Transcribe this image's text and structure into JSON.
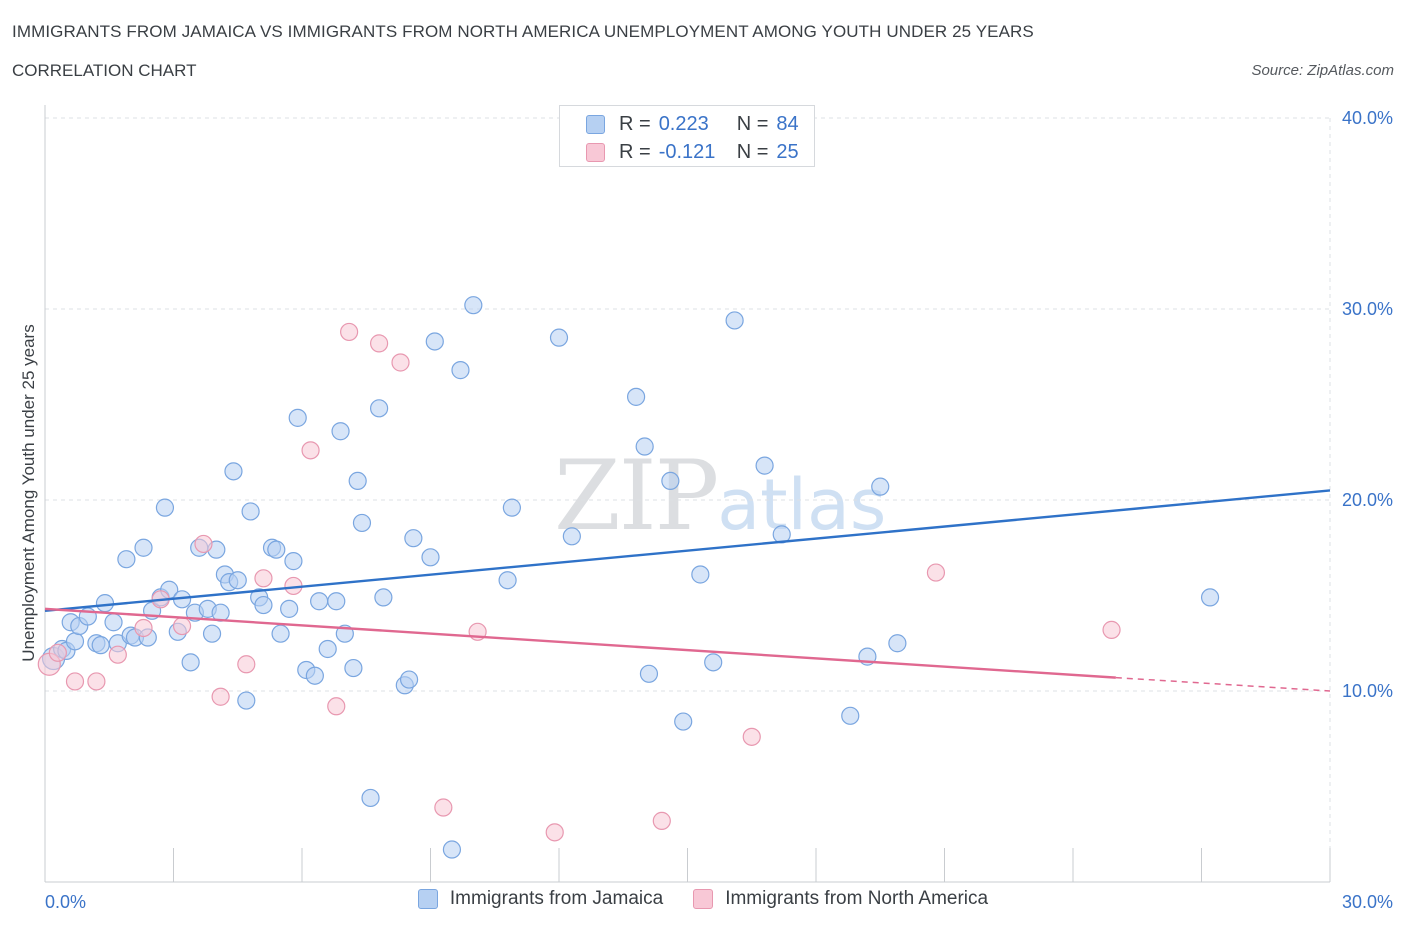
{
  "header": {
    "title": "IMMIGRANTS FROM JAMAICA VS IMMIGRANTS FROM NORTH AMERICA UNEMPLOYMENT AMONG YOUTH UNDER 25 YEARS",
    "subtitle": "CORRELATION CHART",
    "source": "Source: ZipAtlas.com"
  },
  "watermark": {
    "zip": "ZIP",
    "atlas": "atlas"
  },
  "legend": {
    "rows": [
      {
        "r_label": "R =",
        "r_value": "0.223",
        "n_label": "N =",
        "n_value": "84",
        "color": "#b6d0f2",
        "border": "#7aa6e0"
      },
      {
        "r_label": "R =",
        "r_value": "-0.121",
        "n_label": "N =",
        "n_value": "25",
        "color": "#f8c8d6",
        "border": "#e898b0"
      }
    ]
  },
  "bottom_legend": {
    "items": [
      {
        "label": "Immigrants from Jamaica",
        "color": "#b6d0f2",
        "border": "#7aa6e0"
      },
      {
        "label": "Immigrants from North America",
        "color": "#f8c8d6",
        "border": "#e898b0"
      }
    ]
  },
  "chart_data": {
    "type": "scatter",
    "title": "IMMIGRANTS FROM JAMAICA VS IMMIGRANTS FROM NORTH AMERICA UNEMPLOYMENT AMONG YOUTH UNDER 25 YEARS",
    "xlabel": "",
    "ylabel": "Unemployment Among Youth under 25 years",
    "xlim": [
      0,
      30
    ],
    "ylim": [
      0,
      40
    ],
    "x_ticks": [
      {
        "value": 0,
        "label": "0.0%"
      },
      {
        "value": 30,
        "label": "30.0%"
      }
    ],
    "y_ticks": [
      {
        "value": 10,
        "label": "10.0%"
      },
      {
        "value": 20,
        "label": "20.0%"
      },
      {
        "value": 30,
        "label": "30.0%"
      },
      {
        "value": 40,
        "label": "40.0%"
      }
    ],
    "grid": true,
    "legend_position": "top-center",
    "series": [
      {
        "name": "Immigrants from Jamaica",
        "color": "#7aa6e0",
        "fill": "#b6d0f2",
        "trend_color": "#2f72c8",
        "trend": {
          "x": [
            0,
            30
          ],
          "y": [
            14.2,
            20.5
          ]
        },
        "points": [
          [
            0.2,
            11.7
          ],
          [
            0.4,
            12.2
          ],
          [
            0.5,
            12.1
          ],
          [
            0.6,
            13.6
          ],
          [
            0.7,
            12.6
          ],
          [
            0.8,
            13.4
          ],
          [
            1.0,
            13.9
          ],
          [
            1.2,
            12.5
          ],
          [
            1.3,
            12.4
          ],
          [
            1.4,
            14.6
          ],
          [
            1.6,
            13.6
          ],
          [
            1.7,
            12.5
          ],
          [
            1.9,
            16.9
          ],
          [
            2.0,
            12.9
          ],
          [
            2.1,
            12.8
          ],
          [
            2.3,
            17.5
          ],
          [
            2.4,
            12.8
          ],
          [
            2.5,
            14.2
          ],
          [
            2.7,
            14.9
          ],
          [
            2.8,
            19.6
          ],
          [
            2.9,
            15.3
          ],
          [
            3.1,
            13.1
          ],
          [
            3.2,
            14.8
          ],
          [
            3.4,
            11.5
          ],
          [
            3.5,
            14.1
          ],
          [
            3.6,
            17.5
          ],
          [
            3.8,
            14.3
          ],
          [
            3.9,
            13.0
          ],
          [
            4.0,
            17.4
          ],
          [
            4.1,
            14.1
          ],
          [
            4.2,
            16.1
          ],
          [
            4.3,
            15.7
          ],
          [
            4.4,
            21.5
          ],
          [
            4.5,
            15.8
          ],
          [
            4.7,
            9.5
          ],
          [
            4.8,
            19.4
          ],
          [
            5.0,
            14.9
          ],
          [
            5.1,
            14.5
          ],
          [
            5.3,
            17.5
          ],
          [
            5.4,
            17.4
          ],
          [
            5.5,
            13.0
          ],
          [
            5.7,
            14.3
          ],
          [
            5.8,
            16.8
          ],
          [
            5.9,
            24.3
          ],
          [
            6.1,
            11.1
          ],
          [
            6.3,
            10.8
          ],
          [
            6.4,
            14.7
          ],
          [
            6.6,
            12.2
          ],
          [
            6.8,
            14.7
          ],
          [
            6.9,
            23.6
          ],
          [
            7.0,
            13.0
          ],
          [
            7.2,
            11.2
          ],
          [
            7.3,
            21.0
          ],
          [
            7.4,
            18.8
          ],
          [
            7.6,
            4.4
          ],
          [
            7.8,
            24.8
          ],
          [
            7.9,
            14.9
          ],
          [
            8.4,
            10.3
          ],
          [
            8.5,
            10.6
          ],
          [
            8.6,
            18.0
          ],
          [
            9.0,
            17.0
          ],
          [
            9.1,
            28.3
          ],
          [
            9.5,
            1.7
          ],
          [
            9.7,
            26.8
          ],
          [
            10.0,
            30.2
          ],
          [
            10.8,
            15.8
          ],
          [
            10.9,
            19.6
          ],
          [
            12.0,
            28.5
          ],
          [
            12.3,
            18.1
          ],
          [
            13.8,
            25.4
          ],
          [
            14.0,
            22.8
          ],
          [
            14.1,
            10.9
          ],
          [
            14.6,
            21.0
          ],
          [
            14.9,
            8.4
          ],
          [
            15.3,
            16.1
          ],
          [
            15.6,
            11.5
          ],
          [
            16.1,
            29.4
          ],
          [
            16.8,
            21.8
          ],
          [
            17.2,
            18.2
          ],
          [
            18.8,
            8.7
          ],
          [
            19.2,
            11.8
          ],
          [
            19.5,
            20.7
          ],
          [
            19.9,
            12.5
          ],
          [
            27.2,
            14.9
          ]
        ]
      },
      {
        "name": "Immigrants from North America",
        "color": "#e898b0",
        "fill": "#f8c8d6",
        "trend_color": "#e06890",
        "trend": {
          "x": [
            0,
            25
          ],
          "y": [
            14.3,
            10.7
          ]
        },
        "trend_dashed": {
          "x": [
            25,
            30
          ],
          "y": [
            10.7,
            10.0
          ]
        },
        "points": [
          [
            0.1,
            11.4
          ],
          [
            0.7,
            10.5
          ],
          [
            1.2,
            10.5
          ],
          [
            1.7,
            11.9
          ],
          [
            2.3,
            13.3
          ],
          [
            2.7,
            14.8
          ],
          [
            3.2,
            13.4
          ],
          [
            3.7,
            17.7
          ],
          [
            4.1,
            9.7
          ],
          [
            4.7,
            11.4
          ],
          [
            5.1,
            15.9
          ],
          [
            5.8,
            15.5
          ],
          [
            6.2,
            22.6
          ],
          [
            6.8,
            9.2
          ],
          [
            7.1,
            28.8
          ],
          [
            7.8,
            28.2
          ],
          [
            8.3,
            27.2
          ],
          [
            9.3,
            3.9
          ],
          [
            10.1,
            13.1
          ],
          [
            11.9,
            2.6
          ],
          [
            14.4,
            3.2
          ],
          [
            16.5,
            7.6
          ],
          [
            20.8,
            16.2
          ],
          [
            24.9,
            13.2
          ],
          [
            0.3,
            12.0
          ]
        ]
      }
    ]
  }
}
